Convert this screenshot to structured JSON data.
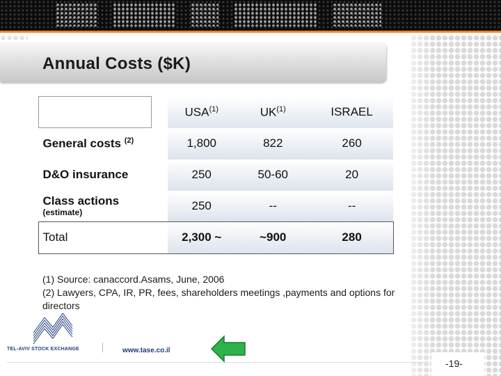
{
  "slide": {
    "title": "Annual Costs ($K)",
    "page_number": "-19-",
    "url": "www.tase.co.il",
    "logo_text": "TEL-AVIV STOCK EXCHANGE",
    "colors": {
      "accent_orange": "#f5821f",
      "brand_blue": "#1f3d7a",
      "arrow_green": "#2db34a"
    },
    "icons": {
      "back": "arrow-left-icon",
      "logo": "tase-logo-icon"
    }
  },
  "table": {
    "headers": [
      {
        "label": "USA",
        "note": "(1)"
      },
      {
        "label": "UK",
        "note": "(1)"
      },
      {
        "label": "ISRAEL",
        "note": ""
      }
    ],
    "rows": [
      {
        "label": "General costs",
        "note": "(2)",
        "sublabel": "",
        "values": [
          "1,800",
          "822",
          "260"
        ]
      },
      {
        "label": "D&O insurance",
        "note": "",
        "sublabel": "",
        "values": [
          "250",
          "50-60",
          "20"
        ]
      },
      {
        "label": "Class actions",
        "note": "",
        "sublabel": "(estimate)",
        "values": [
          "250",
          "--",
          "--"
        ]
      },
      {
        "label": "Total",
        "note": "",
        "sublabel": "",
        "values": [
          "2,300 ~",
          "~900",
          "280"
        ]
      }
    ]
  },
  "footnotes": [
    "(1) Source: canaccord.Asams, June, 2006",
    "(2) Lawyers, CPA, IR, PR, fees, shareholders meetings ,payments and options for directors"
  ]
}
